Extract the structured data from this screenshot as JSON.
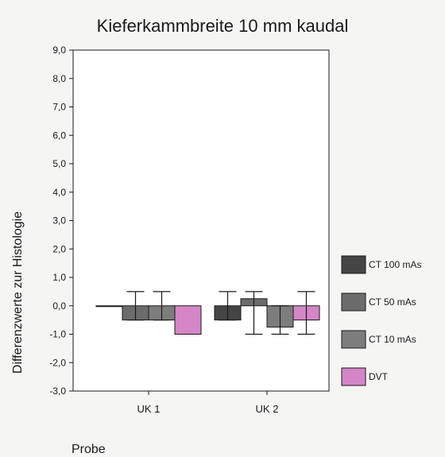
{
  "chart_data": {
    "type": "bar",
    "title": "Kieferkammbreite 10 mm kaudal",
    "xlabel": "Probe",
    "ylabel": "Differenzwerte zur Histologie",
    "ylim": [
      -3.0,
      9.0
    ],
    "yticks": [
      "9,0",
      "8,0",
      "7,0",
      "6,0",
      "5,0",
      "4,0",
      "3,0",
      "2,0",
      "1,0",
      "0,0",
      "-1,0",
      "-2,0",
      "-3,0"
    ],
    "categories": [
      "UK 1",
      "UK 2"
    ],
    "grid": false,
    "legend_position": "right",
    "series": [
      {
        "name": "CT 100 mAs",
        "color": "#454545",
        "values": [
          0.0,
          -0.5
        ],
        "error_low": [
          0.0,
          -0.5
        ],
        "error_high": [
          0.0,
          0.5
        ]
      },
      {
        "name": "CT 50 mAs",
        "color": "#6c6c6c",
        "values": [
          -0.5,
          0.25
        ],
        "error_low": [
          -0.5,
          -1.0
        ],
        "error_high": [
          0.5,
          0.5
        ]
      },
      {
        "name": "CT 10 mAs",
        "color": "#7d7d7d",
        "values": [
          -0.5,
          -0.75
        ],
        "error_low": [
          -0.5,
          -1.0
        ],
        "error_high": [
          0.5,
          0.0
        ]
      },
      {
        "name": "DVT",
        "color": "#d486c6",
        "values": [
          -1.0,
          -0.5
        ],
        "error_low": [
          -1.0,
          -1.0
        ],
        "error_high": [
          -1.0,
          0.5
        ]
      }
    ]
  }
}
